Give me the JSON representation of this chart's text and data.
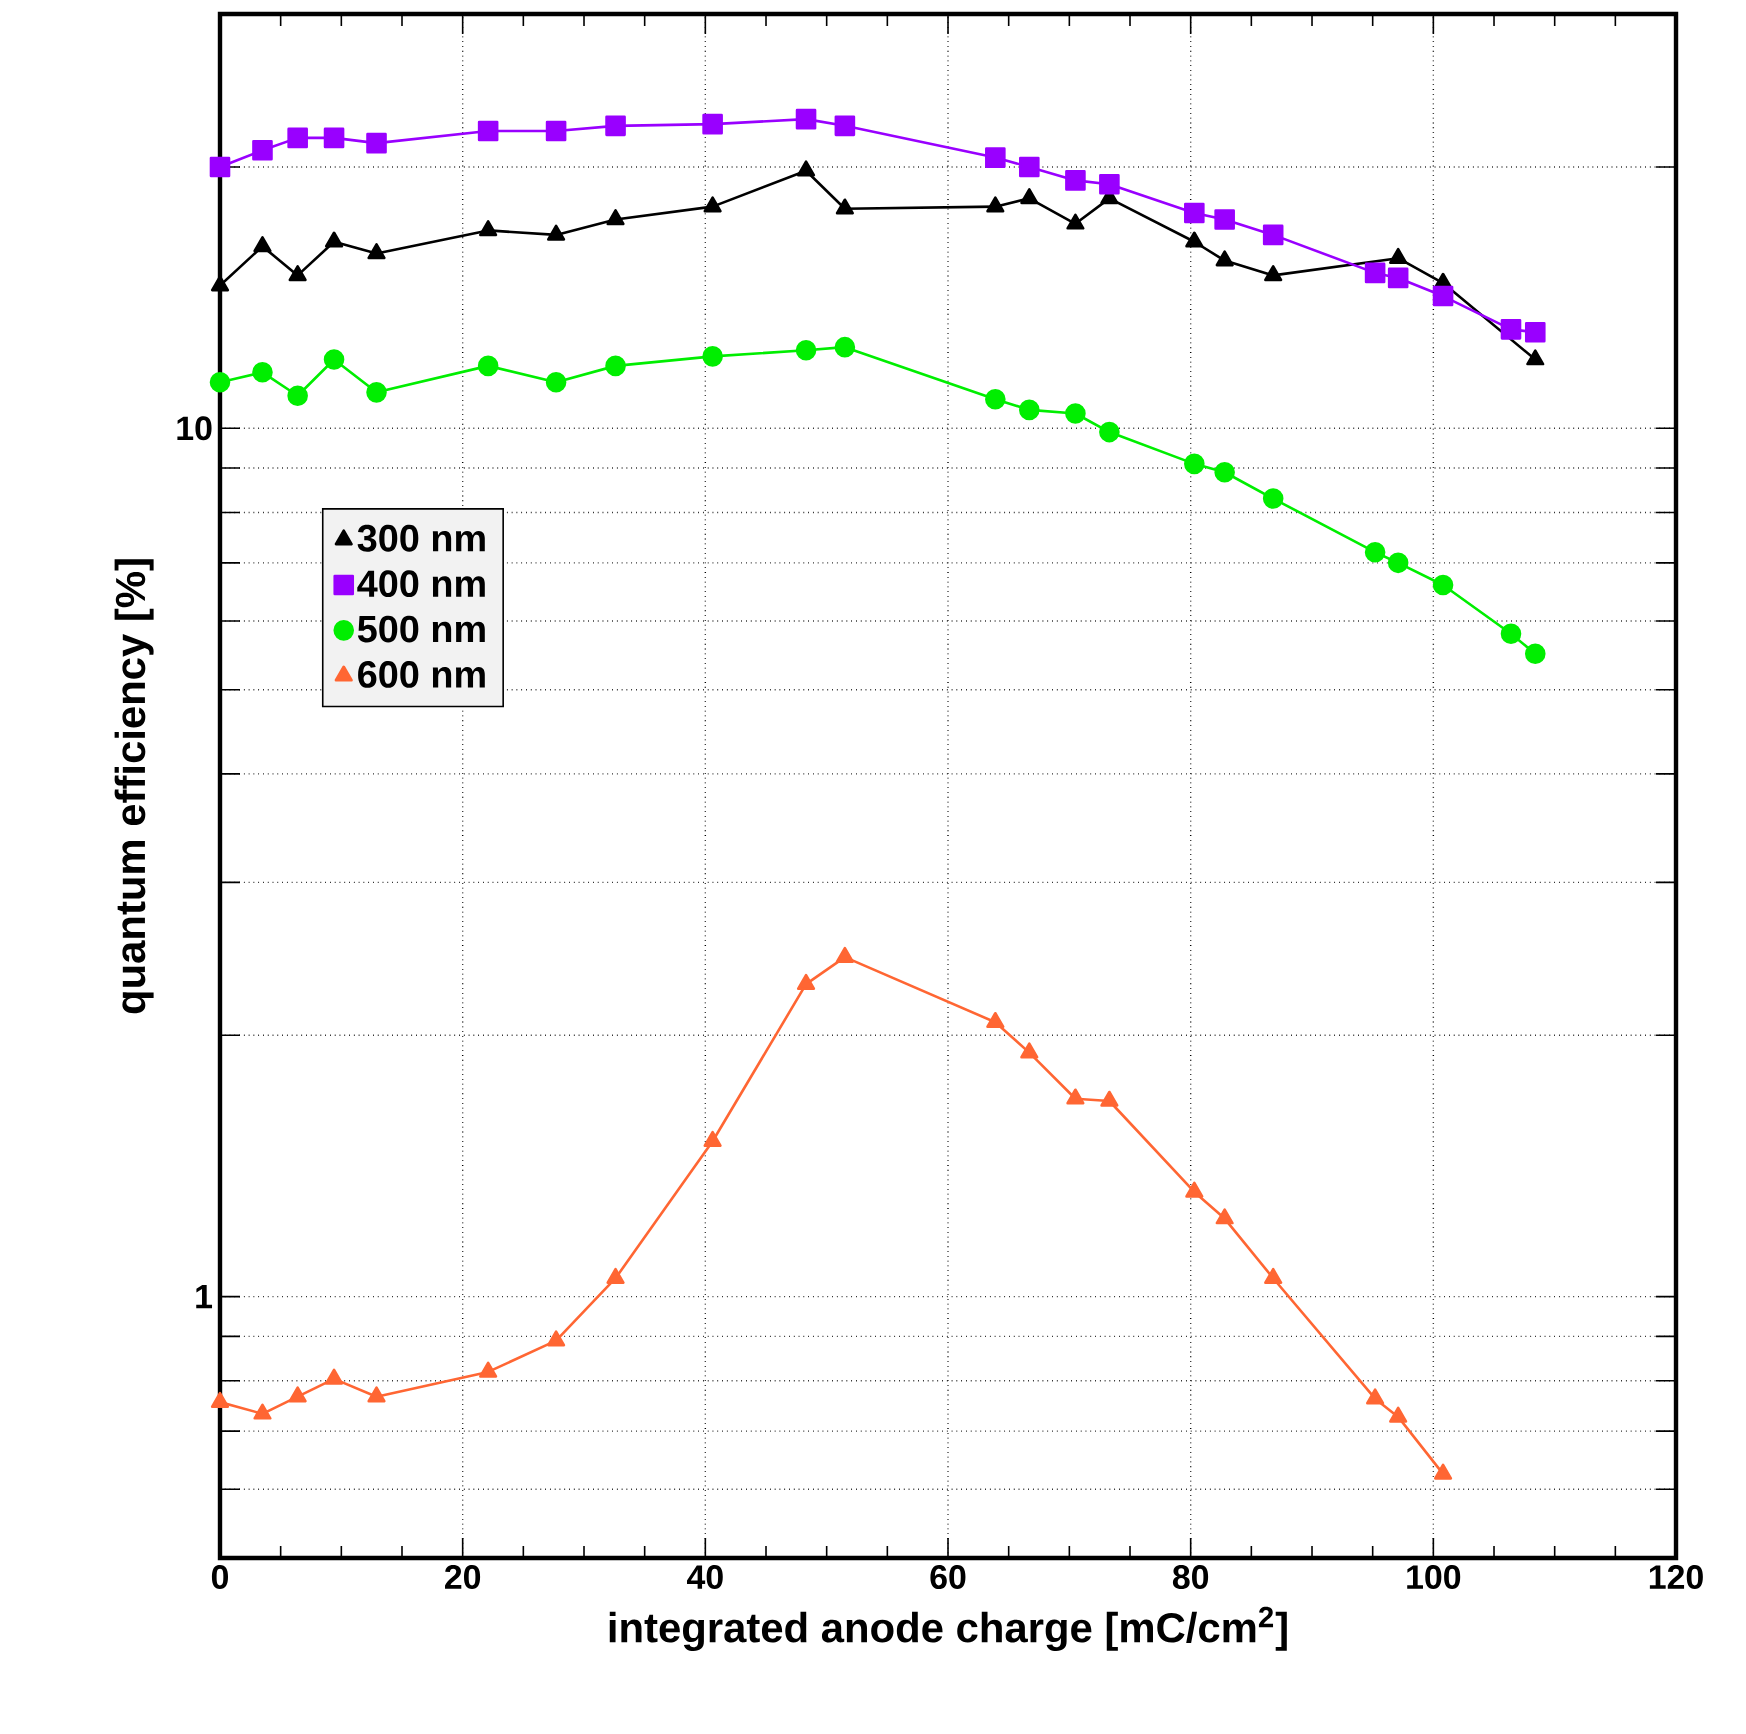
{
  "chart_data": {
    "type": "line",
    "xlabel": "integrated anode charge [mC/cm$^{2}$]",
    "ylabel": "quantum efficiency  [%]",
    "log": "y",
    "grid": true,
    "legend": "left",
    "line_style": "solid",
    "x": [
      0,
      3.5,
      6.4,
      9.4,
      12.9,
      22.1,
      27.7,
      32.6,
      40.6,
      48.3,
      51.5,
      63.9,
      66.7,
      70.5,
      73.3,
      80.3,
      82.8,
      86.8,
      95.2,
      97.1,
      100.8,
      106.4,
      108.4
    ],
    "xlim": [
      0,
      120
    ],
    "xticks": [
      0,
      20,
      40,
      60,
      80,
      100,
      120
    ],
    "ylim": [
      0.5,
      30
    ],
    "yticks": [
      {
        "value": 0.6,
        "label": null
      },
      {
        "value": 0.7,
        "label": null
      },
      {
        "value": 0.8,
        "label": null
      },
      {
        "value": 0.9,
        "label": null
      },
      1,
      {
        "value": 2,
        "label": null
      },
      {
        "value": 3,
        "label": null
      },
      {
        "value": 4,
        "label": null
      },
      {
        "value": 5,
        "label": null
      },
      {
        "value": 6,
        "label": null
      },
      {
        "value": 7,
        "label": null
      },
      {
        "value": 8,
        "label": null
      },
      {
        "value": 9,
        "label": null
      },
      10,
      {
        "value": 20,
        "label": null
      }
    ],
    "series": [
      {
        "name": "300 nm",
        "color": "#000000",
        "marker": "triangle",
        "x": [
          0,
          3.5,
          6.4,
          9.4,
          12.9,
          22.1,
          27.7,
          32.6,
          40.6,
          48.3,
          51.5,
          63.9,
          66.7,
          70.5,
          73.3,
          80.3,
          82.8,
          86.8,
          95.2,
          97.1,
          100.8,
          108.4
        ],
        "values": [
          14.6,
          16.2,
          15.0,
          16.4,
          15.9,
          16.9,
          16.7,
          17.4,
          18.0,
          19.8,
          17.9,
          18.0,
          18.4,
          17.2,
          18.4,
          16.4,
          15.6,
          15.0,
          null,
          15.7,
          14.7,
          12.0
        ]
      },
      {
        "name": "400 nm",
        "color": "#9900ff",
        "marker": "square",
        "values": [
          20.0,
          20.9,
          21.6,
          21.6,
          21.3,
          22.0,
          22.0,
          22.3,
          22.4,
          22.7,
          22.3,
          20.5,
          20.0,
          19.3,
          19.1,
          17.7,
          17.4,
          16.7,
          15.1,
          14.9,
          14.2,
          13.0,
          12.9
        ]
      },
      {
        "name": "500 nm",
        "color": "#00ee00",
        "marker": "circle",
        "values": [
          11.3,
          11.6,
          10.9,
          12.0,
          11.0,
          11.8,
          11.3,
          11.8,
          12.1,
          12.3,
          12.4,
          10.8,
          10.5,
          10.4,
          9.9,
          9.1,
          8.9,
          8.3,
          7.2,
          7.0,
          6.6,
          5.8,
          5.5
        ]
      },
      {
        "name": "600 nm",
        "color": "#ff6633",
        "marker": "triangle",
        "x": [
          0,
          3.5,
          6.4,
          9.4,
          12.9,
          22.1,
          27.7,
          32.6,
          40.6,
          48.3,
          51.5,
          63.9,
          66.7,
          70.5,
          73.3,
          80.3,
          82.8,
          86.8,
          95.2,
          97.1,
          100.8
        ],
        "values": [
          0.756,
          0.733,
          0.767,
          0.804,
          0.767,
          0.819,
          0.89,
          1.05,
          1.51,
          2.29,
          2.46,
          2.07,
          1.91,
          1.69,
          1.68,
          1.32,
          1.23,
          1.05,
          0.763,
          0.727,
          0.625
        ]
      }
    ]
  }
}
